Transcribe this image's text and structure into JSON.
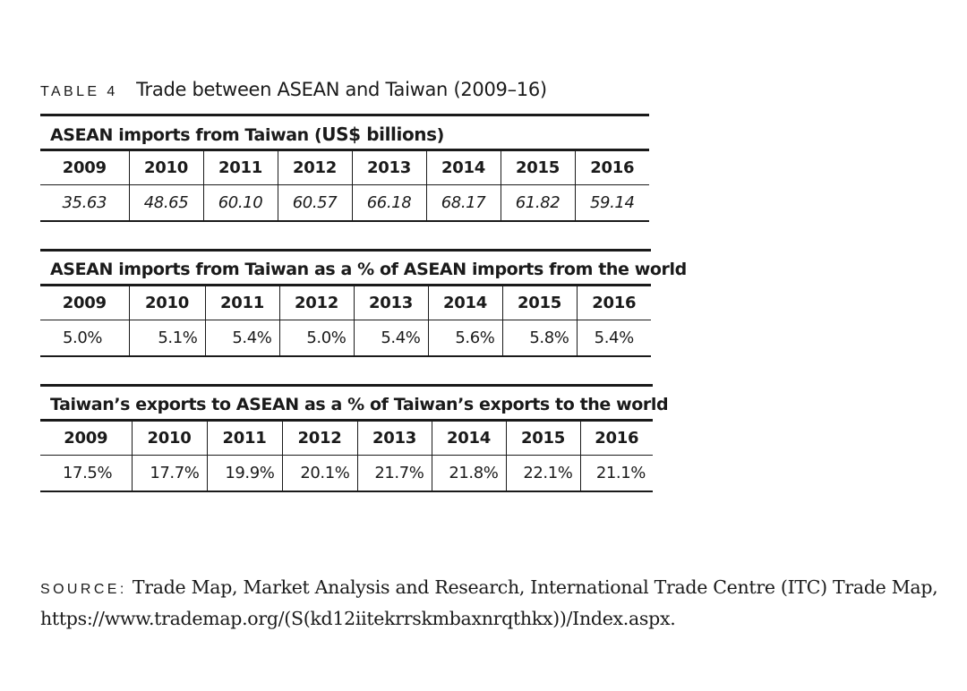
{
  "caption": {
    "label": "TABLE 4",
    "title": "Trade between ASEAN and Taiwan (2009–16)"
  },
  "years": [
    "2009",
    "2010",
    "2011",
    "2012",
    "2013",
    "2014",
    "2015",
    "2016"
  ],
  "tables": [
    {
      "heading_prefix": "ASEAN imports from Taiwan (",
      "heading_strong": "US$ billions",
      "heading_suffix": ")",
      "values": [
        "35.63",
        "48.65",
        "60.10",
        "60.57",
        "66.18",
        "68.17",
        "61.82",
        "59.14"
      ]
    },
    {
      "heading": "ASEAN imports from Taiwan as a % of ASEAN imports from the world",
      "values": [
        "5.0%",
        "5.1%",
        "5.4%",
        "5.0%",
        "5.4%",
        "5.6%",
        "5.8%",
        "5.4%"
      ]
    },
    {
      "heading": "Taiwan’s exports to ASEAN as a % of Taiwan’s exports to the world",
      "values": [
        "17.5%",
        "17.7%",
        "19.9%",
        "20.1%",
        "21.7%",
        "21.8%",
        "22.1%",
        "21.1%"
      ]
    }
  ],
  "source": {
    "label": "SOURCE:",
    "text": "Trade Map, Market Analysis and Research, International Trade Centre (ITC) Trade Map, https://www.trademap.org/(S(kd12iitekrrskmbaxnrqthkx))/Index.aspx."
  }
}
